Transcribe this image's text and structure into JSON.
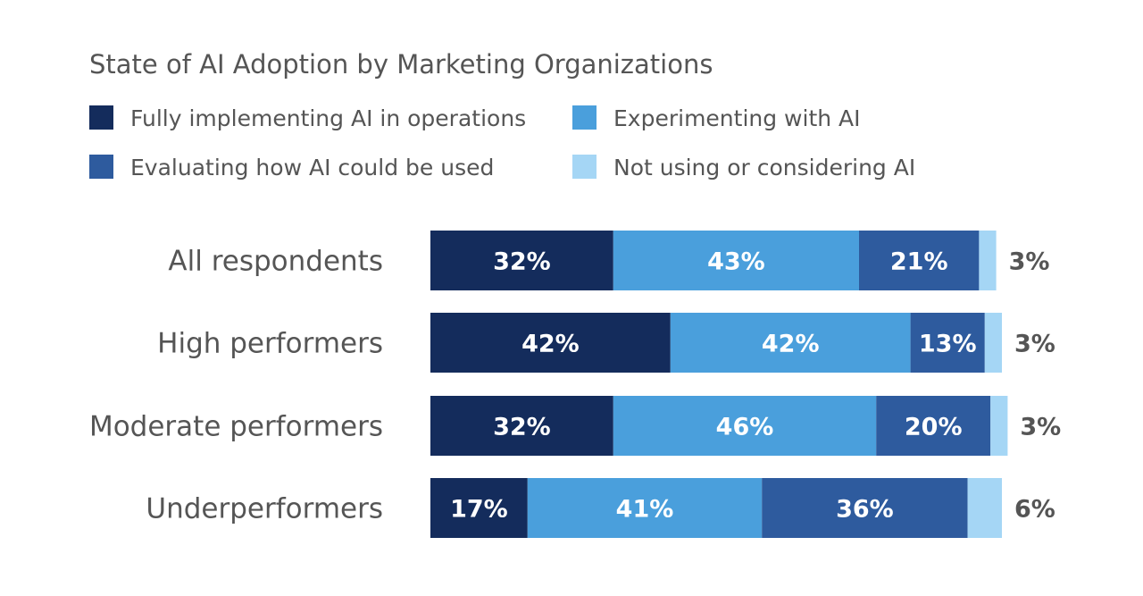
{
  "chart_data": {
    "type": "bar",
    "orientation": "horizontal",
    "stacked": true,
    "title": "State of AI Adoption by Marketing Organizations",
    "legend_position": "top-left",
    "xlim": [
      0,
      100
    ],
    "categories": [
      "All respondents",
      "High performers",
      "Moderate performers",
      "Underperformers"
    ],
    "series": [
      {
        "name": "Fully implementing AI in operations",
        "color": "#142c5c",
        "values": [
          32,
          42,
          32,
          17
        ],
        "labels": [
          "32%",
          "42%",
          "32%",
          "17%"
        ]
      },
      {
        "name": "Experimenting with AI",
        "color": "#4a9fdc",
        "values": [
          43,
          42,
          46,
          41
        ],
        "labels": [
          "43%",
          "42%",
          "46%",
          "41%"
        ]
      },
      {
        "name": "Evaluating how AI could be used",
        "color": "#2e5b9e",
        "values": [
          21,
          13,
          20,
          36
        ],
        "labels": [
          "21%",
          "13%",
          "20%",
          "36%"
        ]
      },
      {
        "name": "Not using or considering AI",
        "color": "#a5d6f5",
        "values": [
          3,
          3,
          3,
          6
        ],
        "labels": [
          "3%",
          "3%",
          "3%",
          "6%"
        ]
      }
    ]
  },
  "colors": {
    "text": "#555555",
    "bar_label": "#ffffff"
  }
}
